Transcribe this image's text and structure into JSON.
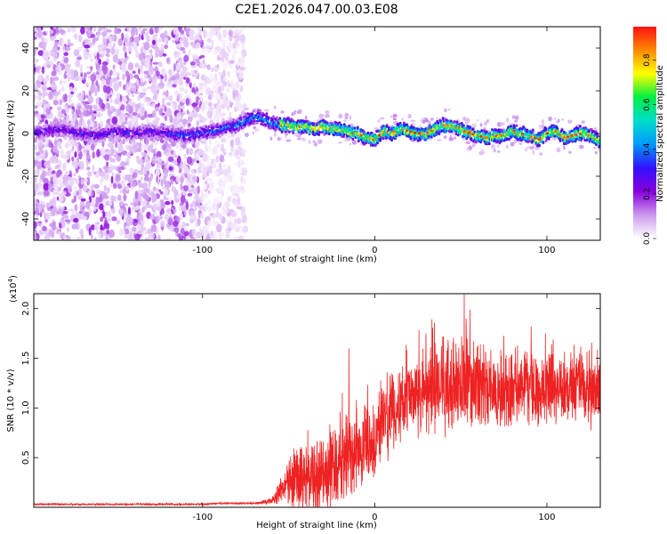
{
  "title": "C2E1.2026.047.00.03.E08",
  "chart_data": [
    {
      "type": "heatmap",
      "title": "C2E1.2026.047.00.03.E08",
      "xlabel": "Height of straight line (km)",
      "ylabel": "Frequency (Hz)",
      "xlim": [
        -198,
        131
      ],
      "ylim": [
        -50,
        50
      ],
      "xticks": [
        -100,
        0,
        100
      ],
      "yticks": [
        -40,
        -20,
        0,
        20,
        40
      ],
      "xtick_labels": [
        "-100",
        "0",
        "100"
      ],
      "ytick_labels": [
        "-40",
        "-20",
        "0",
        "20",
        "40"
      ],
      "ridge_x": [
        -198,
        -190,
        -180,
        -170,
        -160,
        -150,
        -140,
        -130,
        -120,
        -110,
        -100,
        -90,
        -80,
        -75,
        -70,
        -65,
        -60,
        -55,
        -50,
        -45,
        -40,
        -35,
        -30,
        -25,
        -20,
        -15,
        -10,
        -5,
        0,
        5,
        10,
        15,
        20,
        25,
        30,
        35,
        40,
        45,
        50,
        55,
        60,
        65,
        70,
        75,
        80,
        85,
        90,
        95,
        100,
        105,
        110,
        115,
        120,
        125,
        131
      ],
      "ridge_freq": [
        0,
        1,
        2,
        0,
        -1,
        1,
        0,
        1,
        0,
        -1,
        0,
        2,
        4,
        6,
        8,
        7,
        5,
        4,
        4,
        3,
        3,
        2,
        3,
        2,
        2,
        1,
        0,
        -2,
        -3,
        1,
        0,
        2,
        1,
        0,
        0,
        2,
        4,
        3,
        2,
        0,
        -1,
        -2,
        -1,
        -1,
        1,
        0,
        -1,
        -3,
        0,
        1,
        -2,
        -1,
        0,
        -1,
        -4
      ],
      "colorbar": {
        "label": "Normalized spectral amplitude",
        "range": [
          0.0,
          0.95
        ],
        "ticks": [
          "0.0",
          "0.2",
          "0.4",
          "0.6",
          "0.8"
        ],
        "tick_values": [
          0.0,
          0.2,
          0.4,
          0.6,
          0.8
        ],
        "colormap": [
          "#ffffff",
          "#cc99ee",
          "#8800dd",
          "#3311ff",
          "#0099ff",
          "#00ddcc",
          "#00ee44",
          "#ffff00",
          "#ff8800",
          "#ff1111"
        ]
      }
    },
    {
      "type": "line",
      "xlabel": "Height of straight line (km)",
      "ylabel": "SNR (10 * v/v)",
      "multiplier_label": "(x10",
      "multiplier_exponent": "4",
      "multiplier_close": ")",
      "xlim": [
        -198,
        131
      ],
      "ylim": [
        0,
        2.15
      ],
      "xticks": [
        -100,
        0,
        100
      ],
      "yticks": [
        0.5,
        1.0,
        1.5,
        2.0
      ],
      "xtick_labels": [
        "-100",
        "0",
        "100"
      ],
      "ytick_labels": [
        "0.5",
        "1.0",
        "1.5",
        "2.0"
      ],
      "line_color": "#ee2222",
      "series": [
        {
          "name": "SNR",
          "x": [
            -198,
            -180,
            -160,
            -140,
            -120,
            -100,
            -90,
            -80,
            -70,
            -60,
            -55,
            -50,
            -45,
            -40,
            -35,
            -30,
            -25,
            -20,
            -15,
            -10,
            -5,
            0,
            5,
            10,
            15,
            20,
            25,
            30,
            35,
            40,
            45,
            50,
            55,
            60,
            65,
            70,
            75,
            80,
            85,
            90,
            95,
            100,
            105,
            110,
            115,
            120,
            125,
            131
          ],
          "mean": [
            0.03,
            0.03,
            0.03,
            0.03,
            0.03,
            0.03,
            0.04,
            0.04,
            0.04,
            0.06,
            0.15,
            0.25,
            0.3,
            0.3,
            0.3,
            0.35,
            0.4,
            0.45,
            0.52,
            0.58,
            0.62,
            0.7,
            0.82,
            0.95,
            1.05,
            1.1,
            1.15,
            1.18,
            1.2,
            1.22,
            1.22,
            1.22,
            1.2,
            1.2,
            1.18,
            1.18,
            1.2,
            1.2,
            1.2,
            1.22,
            1.2,
            1.2,
            1.2,
            1.2,
            1.2,
            1.2,
            1.2,
            1.2
          ],
          "amp": [
            0.01,
            0.01,
            0.01,
            0.01,
            0.01,
            0.01,
            0.01,
            0.01,
            0.01,
            0.04,
            0.15,
            0.3,
            0.4,
            0.45,
            0.5,
            0.5,
            0.55,
            0.6,
            0.55,
            0.45,
            0.45,
            0.45,
            0.45,
            0.45,
            0.45,
            0.45,
            0.5,
            0.5,
            0.55,
            0.6,
            0.6,
            0.6,
            0.6,
            0.55,
            0.5,
            0.45,
            0.45,
            0.45,
            0.45,
            0.45,
            0.45,
            0.45,
            0.45,
            0.45,
            0.45,
            0.45,
            0.45,
            0.45
          ],
          "peaks": [
            {
              "x": 52,
              "y": 2.15
            },
            {
              "x": -15,
              "y": 1.6
            },
            {
              "x": 53,
              "y": 1.9
            }
          ]
        }
      ]
    }
  ]
}
